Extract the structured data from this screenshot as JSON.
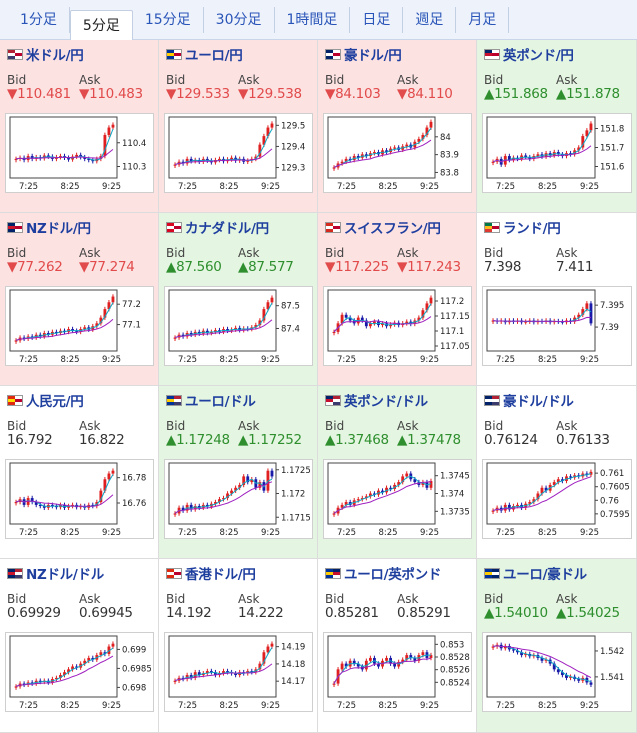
{
  "tabs": [
    {
      "label": "1分足",
      "active": false
    },
    {
      "label": "5分足",
      "active": true
    },
    {
      "label": "15分足",
      "active": false
    },
    {
      "label": "30分足",
      "active": false
    },
    {
      "label": "1時間足",
      "active": false
    },
    {
      "label": "日足",
      "active": false
    },
    {
      "label": "週足",
      "active": false
    },
    {
      "label": "月足",
      "active": false
    }
  ],
  "labels": {
    "bid": "Bid",
    "ask": "Ask"
  },
  "colors": {
    "up": "#2f8f2f",
    "down": "#e14b4b",
    "bull": "#e02020",
    "bear": "#1a1aa8",
    "ma_fast": "#0aa7c6",
    "ma_slow": "#a020c0"
  },
  "cards": [
    {
      "pair": "米ドル/円",
      "flag": "us-jp",
      "trend": "down",
      "bid": "▼110.481",
      "ask": "▼110.483",
      "chart": {
        "ticks": [
          "110.4",
          "110.3"
        ],
        "tick_values": [
          110.4,
          110.3
        ],
        "ylim": [
          110.26,
          110.5
        ],
        "xticks": [
          "7:25",
          "8:25",
          "9:25"
        ],
        "shape": [
          0.3,
          0.32,
          0.28,
          0.35,
          0.3,
          0.33,
          0.31,
          0.36,
          0.34,
          0.3,
          0.33,
          0.35,
          0.32,
          0.29,
          0.34,
          0.37,
          0.33,
          0.3,
          0.28,
          0.26,
          0.3,
          0.35,
          0.72,
          0.85,
          0.9
        ]
      }
    },
    {
      "pair": "ユーロ/円",
      "flag": "eu-jp",
      "trend": "down",
      "bid": "▼129.533",
      "ask": "▼129.538",
      "chart": {
        "ticks": [
          "129.5",
          "129.4",
          "129.3"
        ],
        "tick_values": [
          129.5,
          129.4,
          129.3
        ],
        "ylim": [
          129.26,
          129.53
        ],
        "xticks": [
          "7:25",
          "8:25",
          "9:25"
        ],
        "shape": [
          0.2,
          0.25,
          0.22,
          0.3,
          0.26,
          0.28,
          0.25,
          0.3,
          0.27,
          0.24,
          0.28,
          0.3,
          0.26,
          0.29,
          0.32,
          0.27,
          0.3,
          0.25,
          0.27,
          0.3,
          0.34,
          0.55,
          0.7,
          0.85,
          0.92
        ]
      }
    },
    {
      "pair": "豪ドル/円",
      "flag": "au-jp",
      "trend": "down",
      "bid": "▼84.103",
      "ask": "▼84.110",
      "chart": {
        "ticks": [
          "84",
          "83.9",
          "83.8"
        ],
        "tick_values": [
          84.0,
          83.9,
          83.8
        ],
        "ylim": [
          83.78,
          84.1
        ],
        "xticks": [
          "7:25",
          "8:25",
          "9:25"
        ],
        "shape": [
          0.15,
          0.22,
          0.25,
          0.3,
          0.28,
          0.35,
          0.32,
          0.38,
          0.35,
          0.4,
          0.42,
          0.38,
          0.45,
          0.42,
          0.48,
          0.5,
          0.46,
          0.52,
          0.55,
          0.5,
          0.6,
          0.65,
          0.72,
          0.85,
          0.95
        ]
      }
    },
    {
      "pair": "英ポンド/円",
      "flag": "gb-jp",
      "trend": "up",
      "bid": "▲151.868",
      "ask": "▲151.878",
      "chart": {
        "ticks": [
          "151.8",
          "151.7",
          "151.6"
        ],
        "tick_values": [
          151.8,
          151.7,
          151.6
        ],
        "ylim": [
          151.55,
          151.85
        ],
        "xticks": [
          "7:25",
          "8:25",
          "9:25"
        ],
        "shape": [
          0.25,
          0.3,
          0.2,
          0.35,
          0.28,
          0.32,
          0.3,
          0.36,
          0.33,
          0.3,
          0.35,
          0.38,
          0.34,
          0.4,
          0.36,
          0.42,
          0.38,
          0.35,
          0.4,
          0.38,
          0.45,
          0.5,
          0.7,
          0.8,
          0.92
        ]
      }
    },
    {
      "pair": "NZドル/円",
      "flag": "nz-jp",
      "trend": "down",
      "bid": "▼77.262",
      "ask": "▼77.274",
      "chart": {
        "ticks": [
          "77.2",
          "77.1"
        ],
        "tick_values": [
          77.2,
          77.1
        ],
        "ylim": [
          76.98,
          77.26
        ],
        "xticks": [
          "7:25",
          "8:25",
          "9:25"
        ],
        "shape": [
          0.15,
          0.2,
          0.18,
          0.22,
          0.2,
          0.25,
          0.22,
          0.28,
          0.25,
          0.3,
          0.28,
          0.32,
          0.3,
          0.35,
          0.32,
          0.3,
          0.35,
          0.38,
          0.34,
          0.4,
          0.45,
          0.55,
          0.7,
          0.82,
          0.92
        ]
      }
    },
    {
      "pair": "カナダドル/円",
      "flag": "ca-jp",
      "trend": "up",
      "bid": "▲87.560",
      "ask": "▲87.577",
      "chart": {
        "ticks": [
          "87.5",
          "87.4"
        ],
        "tick_values": [
          87.5,
          87.4
        ],
        "ylim": [
          87.31,
          87.56
        ],
        "xticks": [
          "7:25",
          "8:25",
          "9:25"
        ],
        "shape": [
          0.2,
          0.25,
          0.22,
          0.28,
          0.25,
          0.3,
          0.27,
          0.32,
          0.28,
          0.3,
          0.33,
          0.3,
          0.35,
          0.32,
          0.34,
          0.37,
          0.33,
          0.36,
          0.35,
          0.38,
          0.42,
          0.5,
          0.7,
          0.82,
          0.9
        ]
      }
    },
    {
      "pair": "スイスフラン/円",
      "flag": "ch-jp",
      "trend": "down",
      "bid": "▼117.225",
      "ask": "▼117.243",
      "chart": {
        "ticks": [
          "117.2",
          "117.15",
          "117.1",
          "117.05"
        ],
        "tick_values": [
          117.2,
          117.15,
          117.1,
          117.05
        ],
        "ylim": [
          117.04,
          117.23
        ],
        "xticks": [
          "7:25",
          "8:25",
          "9:25"
        ],
        "shape": [
          0.3,
          0.45,
          0.6,
          0.55,
          0.5,
          0.45,
          0.55,
          0.5,
          0.4,
          0.45,
          0.48,
          0.42,
          0.45,
          0.4,
          0.43,
          0.46,
          0.42,
          0.45,
          0.48,
          0.44,
          0.5,
          0.55,
          0.68,
          0.8,
          0.9
        ]
      }
    },
    {
      "pair": "ランド/円",
      "flag": "za-jp",
      "trend": "flat",
      "bid": "7.398",
      "ask": "7.411",
      "chart": {
        "ticks": [
          "7.395",
          "7.39"
        ],
        "tick_values": [
          7.395,
          7.39
        ],
        "ylim": [
          7.385,
          7.398
        ],
        "xticks": [
          "7:25",
          "8:25",
          "9:25"
        ],
        "shape": [
          0.5,
          0.48,
          0.5,
          0.47,
          0.5,
          0.48,
          0.5,
          0.47,
          0.48,
          0.5,
          0.47,
          0.49,
          0.48,
          0.5,
          0.47,
          0.49,
          0.48,
          0.47,
          0.5,
          0.48,
          0.55,
          0.6,
          0.7,
          0.8,
          0.45
        ]
      }
    },
    {
      "pair": "人民元/円",
      "flag": "cn-jp",
      "trend": "flat",
      "bid": "16.792",
      "ask": "16.822",
      "chart": {
        "ticks": [
          "16.78",
          "16.76"
        ],
        "tick_values": [
          16.78,
          16.76
        ],
        "ylim": [
          16.745,
          16.79
        ],
        "xticks": [
          "7:25",
          "8:25",
          "9:25"
        ],
        "shape": [
          0.35,
          0.4,
          0.3,
          0.42,
          0.35,
          0.3,
          0.28,
          0.25,
          0.3,
          0.28,
          0.26,
          0.3,
          0.25,
          0.28,
          0.3,
          0.26,
          0.28,
          0.25,
          0.3,
          0.28,
          0.35,
          0.55,
          0.75,
          0.85,
          0.9
        ]
      }
    },
    {
      "pair": "ユーロ/ドル",
      "flag": "eu-us",
      "trend": "up",
      "bid": "▲1.17248",
      "ask": "▲1.17252",
      "chart": {
        "ticks": [
          "1.1725",
          "1.172",
          "1.1715"
        ],
        "tick_values": [
          1.1725,
          1.172,
          1.1715
        ],
        "ylim": [
          1.1714,
          1.1726
        ],
        "xticks": [
          "7:25",
          "8:25",
          "9:25"
        ],
        "shape": [
          0.15,
          0.25,
          0.2,
          0.3,
          0.22,
          0.28,
          0.25,
          0.3,
          0.27,
          0.32,
          0.35,
          0.4,
          0.42,
          0.5,
          0.55,
          0.6,
          0.65,
          0.8,
          0.7,
          0.75,
          0.6,
          0.7,
          0.55,
          0.9,
          0.8
        ]
      }
    },
    {
      "pair": "英ポンド/ドル",
      "flag": "gb-us",
      "trend": "up",
      "bid": "▲1.37468",
      "ask": "▲1.37478",
      "chart": {
        "ticks": [
          "1.3745",
          "1.374",
          "1.3735"
        ],
        "tick_values": [
          1.3745,
          1.374,
          1.3735
        ],
        "ylim": [
          1.3732,
          1.3748
        ],
        "xticks": [
          "7:25",
          "8:25",
          "9:25"
        ],
        "shape": [
          0.15,
          0.25,
          0.3,
          0.35,
          0.3,
          0.38,
          0.4,
          0.42,
          0.45,
          0.5,
          0.48,
          0.55,
          0.52,
          0.6,
          0.58,
          0.65,
          0.7,
          0.8,
          0.85,
          0.75,
          0.7,
          0.65,
          0.7,
          0.6,
          0.72
        ]
      }
    },
    {
      "pair": "豪ドル/ドル",
      "flag": "au-us",
      "trend": "flat",
      "bid": "0.76124",
      "ask": "0.76133",
      "chart": {
        "ticks": [
          "0.761",
          "0.7605",
          "0.76",
          "0.7595"
        ],
        "tick_values": [
          0.761,
          0.7605,
          0.76,
          0.7595
        ],
        "ylim": [
          0.7592,
          0.7613
        ],
        "xticks": [
          "7:25",
          "8:25",
          "9:25"
        ],
        "shape": [
          0.2,
          0.25,
          0.2,
          0.3,
          0.22,
          0.28,
          0.3,
          0.25,
          0.32,
          0.35,
          0.4,
          0.5,
          0.6,
          0.55,
          0.65,
          0.7,
          0.75,
          0.72,
          0.8,
          0.78,
          0.82,
          0.8,
          0.85,
          0.83,
          0.88
        ]
      }
    },
    {
      "pair": "NZドル/ドル",
      "flag": "nz-us",
      "trend": "flat",
      "bid": "0.69929",
      "ask": "0.69945",
      "chart": {
        "ticks": [
          "0.699",
          "0.6985",
          "0.698"
        ],
        "tick_values": [
          0.699,
          0.6985,
          0.698
        ],
        "ylim": [
          0.6978,
          0.6993
        ],
        "xticks": [
          "7:25",
          "8:25",
          "9:25"
        ],
        "shape": [
          0.15,
          0.2,
          0.18,
          0.22,
          0.2,
          0.25,
          0.23,
          0.25,
          0.22,
          0.28,
          0.3,
          0.35,
          0.4,
          0.45,
          0.5,
          0.48,
          0.55,
          0.6,
          0.65,
          0.62,
          0.7,
          0.75,
          0.72,
          0.85,
          0.9
        ]
      }
    },
    {
      "pair": "香港ドル/円",
      "flag": "hk-jp",
      "trend": "flat",
      "bid": "14.192",
      "ask": "14.222",
      "chart": {
        "ticks": [
          "14.19",
          "14.18",
          "14.17"
        ],
        "tick_values": [
          14.19,
          14.18,
          14.17
        ],
        "ylim": [
          14.162,
          14.195
        ],
        "xticks": [
          "7:25",
          "8:25",
          "9:25"
        ],
        "shape": [
          0.25,
          0.3,
          0.28,
          0.35,
          0.3,
          0.4,
          0.35,
          0.38,
          0.42,
          0.4,
          0.35,
          0.38,
          0.42,
          0.4,
          0.38,
          0.35,
          0.4,
          0.38,
          0.42,
          0.4,
          0.45,
          0.55,
          0.75,
          0.85,
          0.9
        ]
      }
    },
    {
      "pair": "ユーロ/英ポンド",
      "flag": "eu-gb",
      "trend": "flat",
      "bid": "0.85281",
      "ask": "0.85291",
      "chart": {
        "ticks": [
          "0.853",
          "0.8528",
          "0.8526",
          "0.8524"
        ],
        "tick_values": [
          0.853,
          0.8528,
          0.8526,
          0.8524
        ],
        "ylim": [
          0.8522,
          0.8531
        ],
        "xticks": [
          "7:25",
          "8:25",
          "9:25"
        ],
        "shape": [
          0.2,
          0.45,
          0.55,
          0.5,
          0.6,
          0.55,
          0.5,
          0.45,
          0.6,
          0.65,
          0.55,
          0.5,
          0.6,
          0.65,
          0.55,
          0.5,
          0.58,
          0.62,
          0.7,
          0.65,
          0.6,
          0.7,
          0.75,
          0.65,
          0.7
        ]
      }
    },
    {
      "pair": "ユーロ/豪ドル",
      "flag": "eu-au",
      "trend": "up",
      "bid": "▲1.54010",
      "ask": "▲1.54025",
      "chart": {
        "ticks": [
          "1.542",
          "1.541"
        ],
        "tick_values": [
          1.542,
          1.541
        ],
        "ylim": [
          1.5403,
          1.5425
        ],
        "xticks": [
          "7:25",
          "8:25",
          "9:25"
        ],
        "shape": [
          0.85,
          0.88,
          0.82,
          0.86,
          0.8,
          0.78,
          0.75,
          0.7,
          0.72,
          0.68,
          0.7,
          0.65,
          0.6,
          0.62,
          0.55,
          0.45,
          0.4,
          0.35,
          0.3,
          0.32,
          0.28,
          0.25,
          0.3,
          0.22,
          0.18
        ]
      }
    }
  ]
}
